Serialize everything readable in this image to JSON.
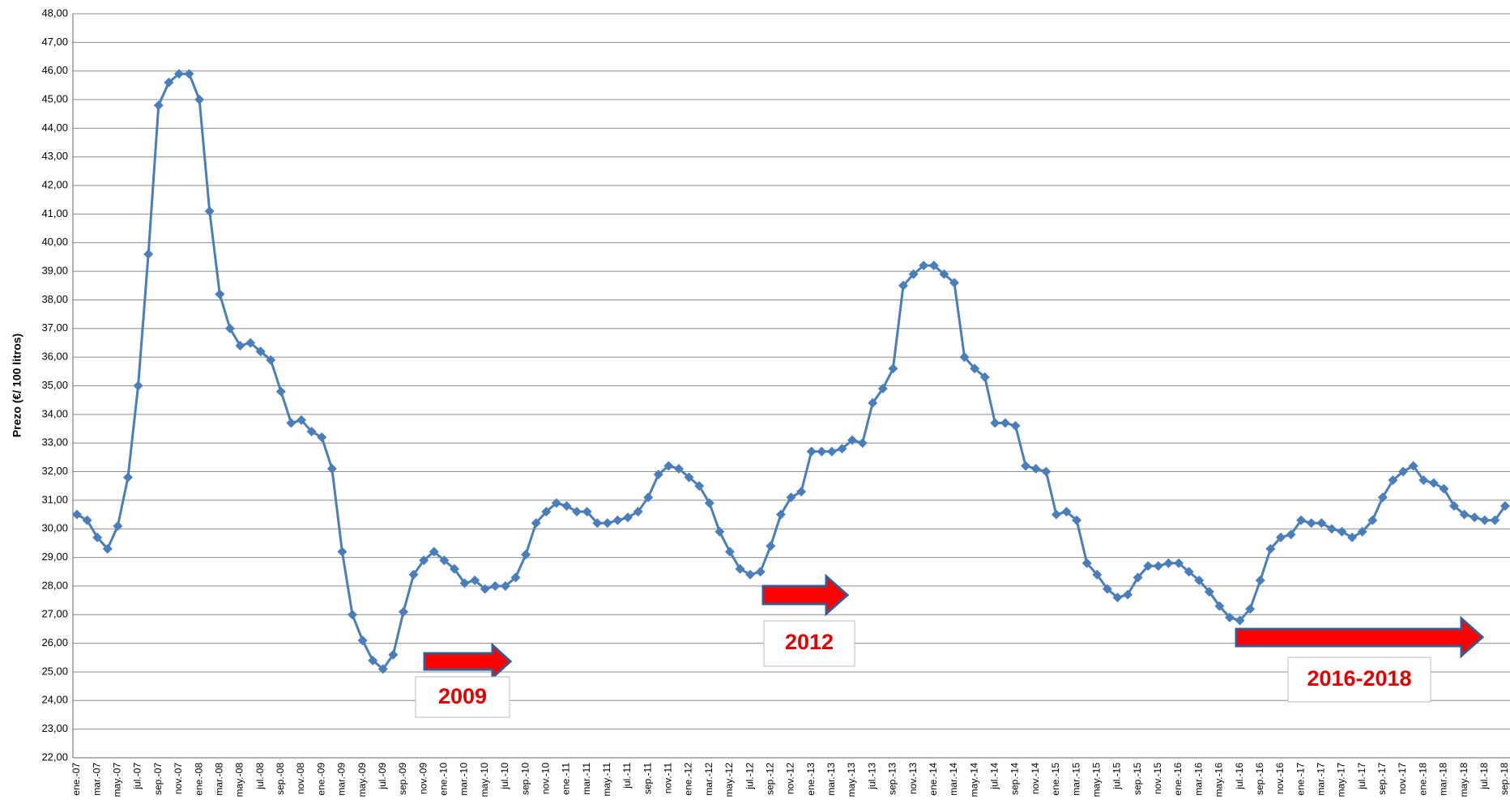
{
  "chart_data": {
    "type": "line",
    "y_label": "Prezo (€/ 100 litros)",
    "categories": [
      "ene.-07",
      null,
      "mar.-07",
      null,
      "may.-07",
      null,
      "jul.-07",
      null,
      "sep.-07",
      null,
      "nov.-07",
      null,
      "ene.-08",
      null,
      "mar.-08",
      null,
      "may.-08",
      null,
      "jul.-08",
      null,
      "sep.-08",
      null,
      "nov.-08",
      null,
      "ene.-09",
      null,
      "mar.-09",
      null,
      "may.-09",
      null,
      "jul.-09",
      null,
      "sep.-09",
      null,
      "nov.-09",
      null,
      "ene.-10",
      null,
      "mar.-10",
      null,
      "may.-10",
      null,
      "jul.-10",
      null,
      "sep.-10",
      null,
      "nov.-10",
      null,
      "ene.-11",
      null,
      "mar.-11",
      null,
      "may.-11",
      null,
      "jul.-11",
      null,
      "sep.-11",
      null,
      "nov.-11",
      null,
      "ene.-12",
      null,
      "mar.-12",
      null,
      "may.-12",
      null,
      "jul.-12",
      null,
      "sep.-12",
      null,
      "nov.-12",
      null,
      "ene.-13",
      null,
      "mar.-13",
      null,
      "may.-13",
      null,
      "jul.-13",
      null,
      "sep.-13",
      null,
      "nov.-13",
      null,
      "ene.-14",
      null,
      "mar.-14",
      null,
      "may.-14",
      null,
      "jul.-14",
      null,
      "sep.-14",
      null,
      "nov.-14",
      null,
      "ene.-15",
      null,
      "mar.-15",
      null,
      "may.-15",
      null,
      "jul.-15",
      null,
      "sep.-15",
      null,
      "nov.-15",
      null,
      "ene.-16",
      null,
      "mar.-16",
      null,
      "may.-16",
      null,
      "jul.-16",
      null,
      "sep.-16",
      null,
      "nov.-16",
      null,
      "ene.-17",
      null,
      "mar.-17",
      null,
      "may.-17",
      null,
      "jul.-17",
      null,
      "sep.-17",
      null,
      "nov.-17",
      null,
      "ene.-18",
      null,
      "mar.-18",
      null,
      "may.-18",
      null,
      "jul.-18",
      null,
      "sep.-18"
    ],
    "series": [
      {
        "name": "Prezo",
        "color": "#4a7ebb",
        "values": [
          30.5,
          30.3,
          29.7,
          29.3,
          30.1,
          31.8,
          35.0,
          39.6,
          44.8,
          45.6,
          45.9,
          45.9,
          45.0,
          41.1,
          38.2,
          37.0,
          36.4,
          36.5,
          36.2,
          35.9,
          34.8,
          33.7,
          33.8,
          33.4,
          33.2,
          32.1,
          29.2,
          27.0,
          26.1,
          25.4,
          25.1,
          25.6,
          27.1,
          28.4,
          28.9,
          29.2,
          28.9,
          28.6,
          28.1,
          28.2,
          27.9,
          28.0,
          28.0,
          28.3,
          29.1,
          30.2,
          30.6,
          30.9,
          30.8,
          30.6,
          30.6,
          30.2,
          30.2,
          30.3,
          30.4,
          30.6,
          31.1,
          31.9,
          32.2,
          32.1,
          31.8,
          31.5,
          30.9,
          29.9,
          29.2,
          28.6,
          28.4,
          28.5,
          29.4,
          30.5,
          31.1,
          31.3,
          32.7,
          32.7,
          32.7,
          32.8,
          33.1,
          33.0,
          34.4,
          34.9,
          35.6,
          38.5,
          38.9,
          39.2,
          39.2,
          38.9,
          38.6,
          36.0,
          35.6,
          35.3,
          33.7,
          33.7,
          33.6,
          32.2,
          32.1,
          32.0,
          30.5,
          30.6,
          30.3,
          28.8,
          28.4,
          27.9,
          27.6,
          27.7,
          28.3,
          28.7,
          28.7,
          28.8,
          28.8,
          28.5,
          28.2,
          27.8,
          27.3,
          26.9,
          26.8,
          27.2,
          28.2,
          29.3,
          29.7,
          29.8,
          30.3,
          30.2,
          30.2,
          30.0,
          29.9,
          29.7,
          29.9,
          30.3,
          31.1,
          31.7,
          32.0,
          32.2,
          31.7,
          31.6,
          31.4,
          30.8,
          30.5,
          30.4,
          30.3,
          30.3,
          30.8
        ]
      }
    ],
    "ylim": [
      22,
      48
    ],
    "yticks": [
      {
        "value": 22,
        "label": "22,00"
      },
      {
        "value": 23,
        "label": "23,00"
      },
      {
        "value": 24,
        "label": "24,00"
      },
      {
        "value": 25,
        "label": "25,00"
      },
      {
        "value": 26,
        "label": "26,00"
      },
      {
        "value": 27,
        "label": "27,00"
      },
      {
        "value": 28,
        "label": "28,00"
      },
      {
        "value": 29,
        "label": "29,00"
      },
      {
        "value": 30,
        "label": "30,00"
      },
      {
        "value": 31,
        "label": "31,00"
      },
      {
        "value": 32,
        "label": "32,00"
      },
      {
        "value": 33,
        "label": "33,00"
      },
      {
        "value": 34,
        "label": "34,00"
      },
      {
        "value": 35,
        "label": "35,00"
      },
      {
        "value": 36,
        "label": "36,00"
      },
      {
        "value": 37,
        "label": "37,00"
      },
      {
        "value": 38,
        "label": "38,00"
      },
      {
        "value": 39,
        "label": "39,00"
      },
      {
        "value": 40,
        "label": "40,00"
      },
      {
        "value": 41,
        "label": "41,00"
      },
      {
        "value": 42,
        "label": "42,00"
      },
      {
        "value": 43,
        "label": "43,00"
      },
      {
        "value": 44,
        "label": "44,00"
      },
      {
        "value": 45,
        "label": "45,00"
      },
      {
        "value": 46,
        "label": "46,00"
      },
      {
        "value": 47,
        "label": "47,00"
      },
      {
        "value": 48,
        "label": "48,00"
      }
    ],
    "grid": true,
    "annotations": [
      "2009",
      "2012",
      "2016-2018"
    ]
  }
}
